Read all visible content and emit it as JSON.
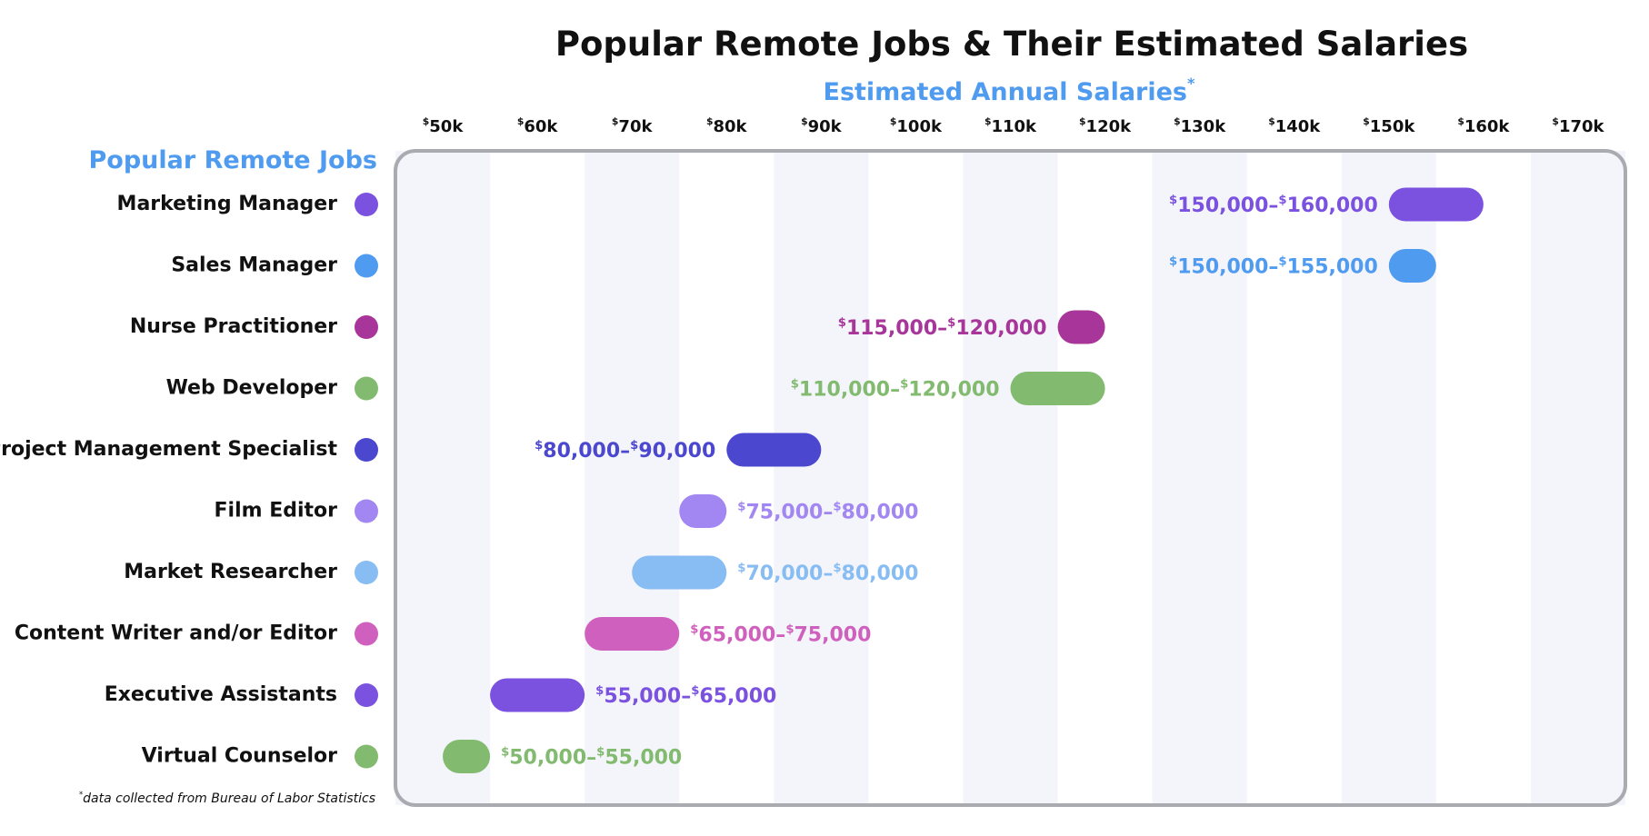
{
  "chart_data": {
    "type": "range_bar",
    "title": "Popular Remote Jobs & Their Estimated Salaries",
    "x_label": "Estimated Annual Salaries*",
    "y_label": "Popular Remote Jobs",
    "footnote": "*data collected from Bureau of Labor Statistics",
    "categories": [
      "Marketing Manager",
      "Sales Manager",
      "Nurse Practitioner",
      "Web Developer",
      "Project Management Specialist",
      "Film Editor",
      "Market Researcher",
      "Content Writer and/or Editor",
      "Executive Assistants",
      "Virtual Counselor"
    ],
    "low": [
      150000,
      150000,
      115000,
      110000,
      80000,
      75000,
      70000,
      65000,
      55000,
      50000
    ],
    "high": [
      160000,
      155000,
      120000,
      120000,
      90000,
      80000,
      80000,
      75000,
      65000,
      55000
    ],
    "value_labels": [
      "$150,000–$160,000",
      "$150,000–$155,000",
      "$115,000–$120,000",
      "$110,000–$120,000",
      "$80,000–$90,000",
      "$75,000–$80,000",
      "$70,000–$80,000",
      "$65,000–$75,000",
      "$55,000–$65,000",
      "$50,000–$55,000"
    ],
    "colors": [
      "#7b52e0",
      "#4f9bf0",
      "#a8359a",
      "#82bb6f",
      "#4b47cf",
      "#a286f2",
      "#88bdf3",
      "#d060bd",
      "#7b52e0",
      "#82bb6f"
    ],
    "xlim": [
      45000,
      175000
    ],
    "xticks": [
      {
        "value": 50000,
        "label": "$50k"
      },
      {
        "value": 60000,
        "label": "$60k"
      },
      {
        "value": 70000,
        "label": "$70k"
      },
      {
        "value": 80000,
        "label": "$80k"
      },
      {
        "value": 90000,
        "label": "$90k"
      },
      {
        "value": 100000,
        "label": "$100k"
      },
      {
        "value": 110000,
        "label": "$110k"
      },
      {
        "value": 120000,
        "label": "$120k"
      },
      {
        "value": 130000,
        "label": "$130k"
      },
      {
        "value": 140000,
        "label": "$140k"
      },
      {
        "value": 150000,
        "label": "$150k"
      },
      {
        "value": 160000,
        "label": "$160k"
      },
      {
        "value": 170000,
        "label": "$170k"
      }
    ],
    "bands": true
  }
}
